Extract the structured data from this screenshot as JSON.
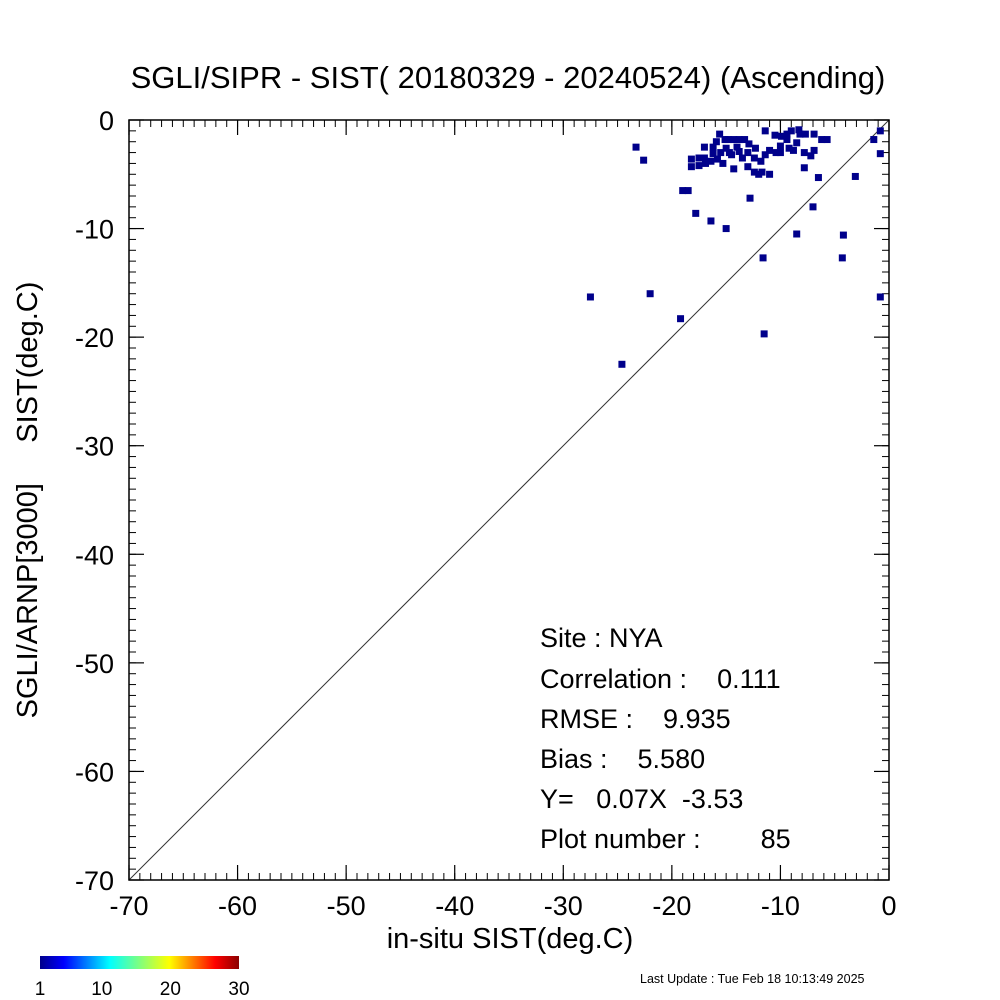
{
  "chart_data": {
    "type": "scatter",
    "title": "SGLI/SIPR - SIST( 20180329 - 20240524) (Ascending)",
    "xlabel": "in-situ SIST(deg.C)",
    "ylabel": "SGLI/ARNP[3000]     SIST(deg.C)",
    "xlim": [
      -70,
      0
    ],
    "ylim": [
      -70,
      0
    ],
    "x_ticks": [
      "-70",
      "-60",
      "-50",
      "-40",
      "-30",
      "-20",
      "-10",
      "0"
    ],
    "y_ticks": [
      "0",
      "-10",
      "-20",
      "-30",
      "-40",
      "-50",
      "-60",
      "-70"
    ],
    "reference_line": "y = x",
    "point_color": "#00008b",
    "points": [
      [
        -22.0,
        -16.0
      ],
      [
        -27.5,
        -16.3
      ],
      [
        -24.6,
        -22.5
      ],
      [
        -19.2,
        -18.3
      ],
      [
        -23.3,
        -2.5
      ],
      [
        -22.6,
        -3.7
      ],
      [
        -17.0,
        -2.5
      ],
      [
        -16.2,
        -2.5
      ],
      [
        -17.5,
        -3.5
      ],
      [
        -17.0,
        -3.5
      ],
      [
        -16.4,
        -3.8
      ],
      [
        -15.8,
        -3.6
      ],
      [
        -18.2,
        -3.6
      ],
      [
        -18.2,
        -4.3
      ],
      [
        -17.5,
        -4.2
      ],
      [
        -16.2,
        -3.1
      ],
      [
        -15.5,
        -3.0
      ],
      [
        -15.0,
        -2.6
      ],
      [
        -14.5,
        -3.2
      ],
      [
        -13.5,
        -3.5
      ],
      [
        -13.0,
        -4.3
      ],
      [
        -12.4,
        -4.8
      ],
      [
        -11.7,
        -4.8
      ],
      [
        -12.4,
        -3.5
      ],
      [
        -11.4,
        -3.2
      ],
      [
        -11.0,
        -2.8
      ],
      [
        -10.4,
        -3.0
      ],
      [
        -10.0,
        -2.4
      ],
      [
        -9.4,
        -1.3
      ],
      [
        -9.4,
        -1.8
      ],
      [
        -8.8,
        -2.8
      ],
      [
        -8.2,
        -1.3
      ],
      [
        -7.7,
        -1.3
      ],
      [
        -6.9,
        -1.3
      ],
      [
        -6.9,
        -2.8
      ],
      [
        -6.2,
        -1.8
      ],
      [
        -14.8,
        -1.8
      ],
      [
        -14.3,
        -1.8
      ],
      [
        -13.8,
        -1.8
      ],
      [
        -13.3,
        -1.8
      ],
      [
        -15.6,
        -1.3
      ],
      [
        -15.1,
        -1.8
      ],
      [
        -14.0,
        -2.5
      ],
      [
        -11.4,
        -1.0
      ],
      [
        -9.0,
        -1.0
      ],
      [
        -8.3,
        -0.9
      ],
      [
        -7.8,
        -3.0
      ],
      [
        -7.2,
        -3.3
      ],
      [
        -12.3,
        -2.6
      ],
      [
        -12.9,
        -2.2
      ],
      [
        -13.8,
        -2.9
      ],
      [
        -14.7,
        -3.0
      ],
      [
        -8.5,
        -2.1
      ],
      [
        -9.9,
        -1.5
      ],
      [
        -19.0,
        -6.5
      ],
      [
        -18.5,
        -6.5
      ],
      [
        -17.8,
        -8.6
      ],
      [
        -16.4,
        -9.3
      ],
      [
        -15.0,
        -10.0
      ],
      [
        -12.8,
        -7.2
      ],
      [
        -11.6,
        -12.7
      ],
      [
        -11.5,
        -19.7
      ],
      [
        -8.5,
        -10.5
      ],
      [
        -7.0,
        -8.0
      ],
      [
        -6.5,
        -5.3
      ],
      [
        -7.8,
        -4.4
      ],
      [
        -5.7,
        -1.8
      ],
      [
        -3.1,
        -5.2
      ],
      [
        -4.2,
        -10.6
      ],
      [
        -4.3,
        -12.7
      ],
      [
        -1.4,
        -1.8
      ],
      [
        -0.8,
        -1.0
      ],
      [
        -0.8,
        -3.1
      ],
      [
        -0.8,
        -16.3
      ],
      [
        -10.5,
        -1.4
      ],
      [
        -16.9,
        -4.0
      ],
      [
        -15.3,
        -4.0
      ],
      [
        -11.0,
        -5.0
      ],
      [
        -10.0,
        -3.0
      ],
      [
        -13.0,
        -3.0
      ],
      [
        -14.3,
        -4.5
      ],
      [
        -12.0,
        -5.0
      ],
      [
        -9.2,
        -2.6
      ],
      [
        -11.8,
        -3.8
      ],
      [
        -15.9,
        -2.0
      ]
    ],
    "colorbar": {
      "labels": [
        "1",
        "10",
        "20",
        "30"
      ],
      "range": [
        1,
        30
      ]
    }
  },
  "stats": {
    "site": "Site : NYA",
    "correlation": "Correlation :    0.111",
    "rmse": "RMSE :    9.935",
    "bias": "Bias :    5.580",
    "regression": "Y=   0.07X  -3.53",
    "plot_number": "Plot number :        85"
  },
  "footer": {
    "last_update": "Last Update : Tue Feb 18 10:13:49 2025"
  }
}
